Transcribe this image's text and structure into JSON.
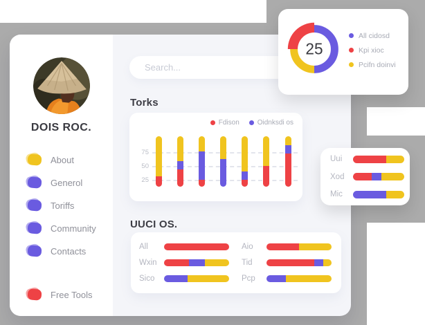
{
  "colors": {
    "red": "#ee4245",
    "purple": "#6a5be0",
    "yellow": "#f0c41f",
    "background_gray": "#ababab",
    "panel": "#f4f5f9",
    "card": "#ffffff",
    "heading_text": "#3d3d45",
    "menu_text": "#8f9099",
    "light_label": "#b4b6c0"
  },
  "sidebar": {
    "profile_name": "DOIS ROC.",
    "items": [
      {
        "label": "About",
        "color": "#f0c41f"
      },
      {
        "label": "Generol",
        "color": "#6a5be0"
      },
      {
        "label": "Toriffs",
        "color": "#6a5be0"
      },
      {
        "label": "Community",
        "color": "#6a5be0"
      },
      {
        "label": "Contacts",
        "color": "#6a5be0"
      }
    ],
    "footer_item": {
      "label": "Free Tools",
      "color": "#ee4245"
    }
  },
  "search": {
    "placeholder": "Search..."
  },
  "sections": {
    "torks_title": "Torks",
    "uuci_title": "UUCI OS."
  },
  "torks_legend": [
    {
      "label": "Fdison",
      "color": "#ee4245"
    },
    {
      "label": "Oidnksdi os",
      "color": "#6a5be0"
    }
  ],
  "donut": {
    "center_value": "25",
    "legend": [
      {
        "label": "All cidosd",
        "color": "#6a5be0"
      },
      {
        "label": "Kpi xioc",
        "color": "#ee4245"
      },
      {
        "label": "Pcifn doinvi",
        "color": "#f0c41f"
      }
    ]
  },
  "chart_data": [
    {
      "id": "donut",
      "type": "pie",
      "legend_position": "right",
      "center_label": "25",
      "labels": [
        "All cidosd",
        "Kpi xioc",
        "Pcifn doinvi"
      ],
      "values": [
        50,
        25,
        25
      ],
      "colors": [
        "#6a5be0",
        "#ee4245",
        "#f0c41f"
      ],
      "emphasized_slice": "Kpi xioc"
    },
    {
      "id": "torks",
      "type": "bar",
      "stacked": true,
      "title": "Torks",
      "categories": [
        "",
        "",
        "",
        "",
        "",
        "",
        ""
      ],
      "ylim": [
        0,
        100
      ],
      "y_ticks": [
        25,
        50,
        75
      ],
      "y_tick_labels": [
        "75",
        "50",
        "25"
      ],
      "grid": "dashed-horizontal",
      "legend_position": "top-right",
      "series": [
        {
          "name": "Fdison",
          "color": "#ee4245",
          "values": [
            19,
            31,
            12,
            0,
            12,
            38,
            60
          ]
        },
        {
          "name": "Oidnksdi os",
          "color": "#6a5be0",
          "values": [
            0,
            16,
            52,
            50,
            16,
            0,
            16
          ]
        },
        {
          "name": "",
          "color": "#f0c41f",
          "values": [
            73,
            45,
            28,
            42,
            64,
            54,
            16
          ]
        }
      ]
    },
    {
      "id": "uuci",
      "type": "bar",
      "orientation": "horizontal",
      "stacked": true,
      "title": "UUCI OS.",
      "rows": [
        {
          "label": "All",
          "segments": [
            {
              "color": "red",
              "pct": 100
            }
          ]
        },
        {
          "label": "Aio",
          "segments": [
            {
              "color": "red",
              "pct": 50
            },
            {
              "color": "yellow",
              "pct": 50
            }
          ]
        },
        {
          "label": "Wxin",
          "segments": [
            {
              "color": "red",
              "pct": 38
            },
            {
              "color": "purple",
              "pct": 25
            },
            {
              "color": "yellow",
              "pct": 37
            }
          ]
        },
        {
          "label": "Tid",
          "segments": [
            {
              "color": "red",
              "pct": 73
            },
            {
              "color": "purple",
              "pct": 14
            },
            {
              "color": "yellow",
              "pct": 13
            }
          ]
        },
        {
          "label": "Sico",
          "segments": [
            {
              "color": "purple",
              "pct": 36
            },
            {
              "color": "yellow",
              "pct": 64
            }
          ]
        },
        {
          "label": "Pcp",
          "segments": [
            {
              "color": "purple",
              "pct": 30
            },
            {
              "color": "yellow",
              "pct": 70
            }
          ]
        }
      ]
    },
    {
      "id": "mini",
      "type": "bar",
      "orientation": "horizontal",
      "stacked": true,
      "rows": [
        {
          "label": "Uui",
          "segments": [
            {
              "color": "red",
              "pct": 65
            },
            {
              "color": "yellow",
              "pct": 35
            }
          ]
        },
        {
          "label": "Xod",
          "segments": [
            {
              "color": "red",
              "pct": 36
            },
            {
              "color": "purple",
              "pct": 20
            },
            {
              "color": "yellow",
              "pct": 44
            }
          ]
        },
        {
          "label": "Mic",
          "segments": [
            {
              "color": "purple",
              "pct": 65
            },
            {
              "color": "yellow",
              "pct": 35
            }
          ]
        }
      ]
    }
  ]
}
